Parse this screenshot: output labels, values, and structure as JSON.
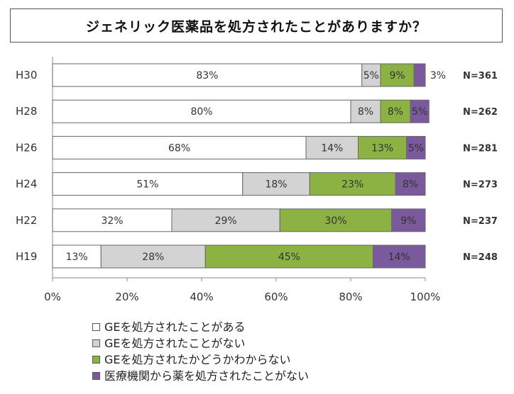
{
  "chart_data": {
    "type": "bar",
    "orientation": "horizontal",
    "stacked": true,
    "title": "ジェネリック医薬品を処方されたことがありますか？",
    "categories": [
      "H30",
      "H28",
      "H26",
      "H24",
      "H22",
      "H19"
    ],
    "sample_sizes": [
      "N=361",
      "N=262",
      "N=281",
      "N=273",
      "N=237",
      "N=248"
    ],
    "series": [
      {
        "name": "GEを処方されたことがある",
        "color": "#ffffff",
        "values": [
          83,
          80,
          68,
          51,
          32,
          13
        ]
      },
      {
        "name": "GEを処方されたことがない",
        "color": "#d3d3d3",
        "values": [
          5,
          8,
          14,
          18,
          29,
          28
        ]
      },
      {
        "name": "GEを処方されたかどうかわからない",
        "color": "#8db244",
        "values": [
          9,
          8,
          13,
          23,
          30,
          45
        ]
      },
      {
        "name": "医療機関から薬を処方されたことがない",
        "color": "#7a5a9c",
        "values": [
          3,
          5,
          5,
          8,
          9,
          14
        ]
      }
    ],
    "xlim": [
      0,
      100
    ],
    "x_ticks": [
      "0%",
      "20%",
      "40%",
      "60%",
      "80%",
      "100%"
    ],
    "grid": false,
    "legend_position": "bottom"
  }
}
